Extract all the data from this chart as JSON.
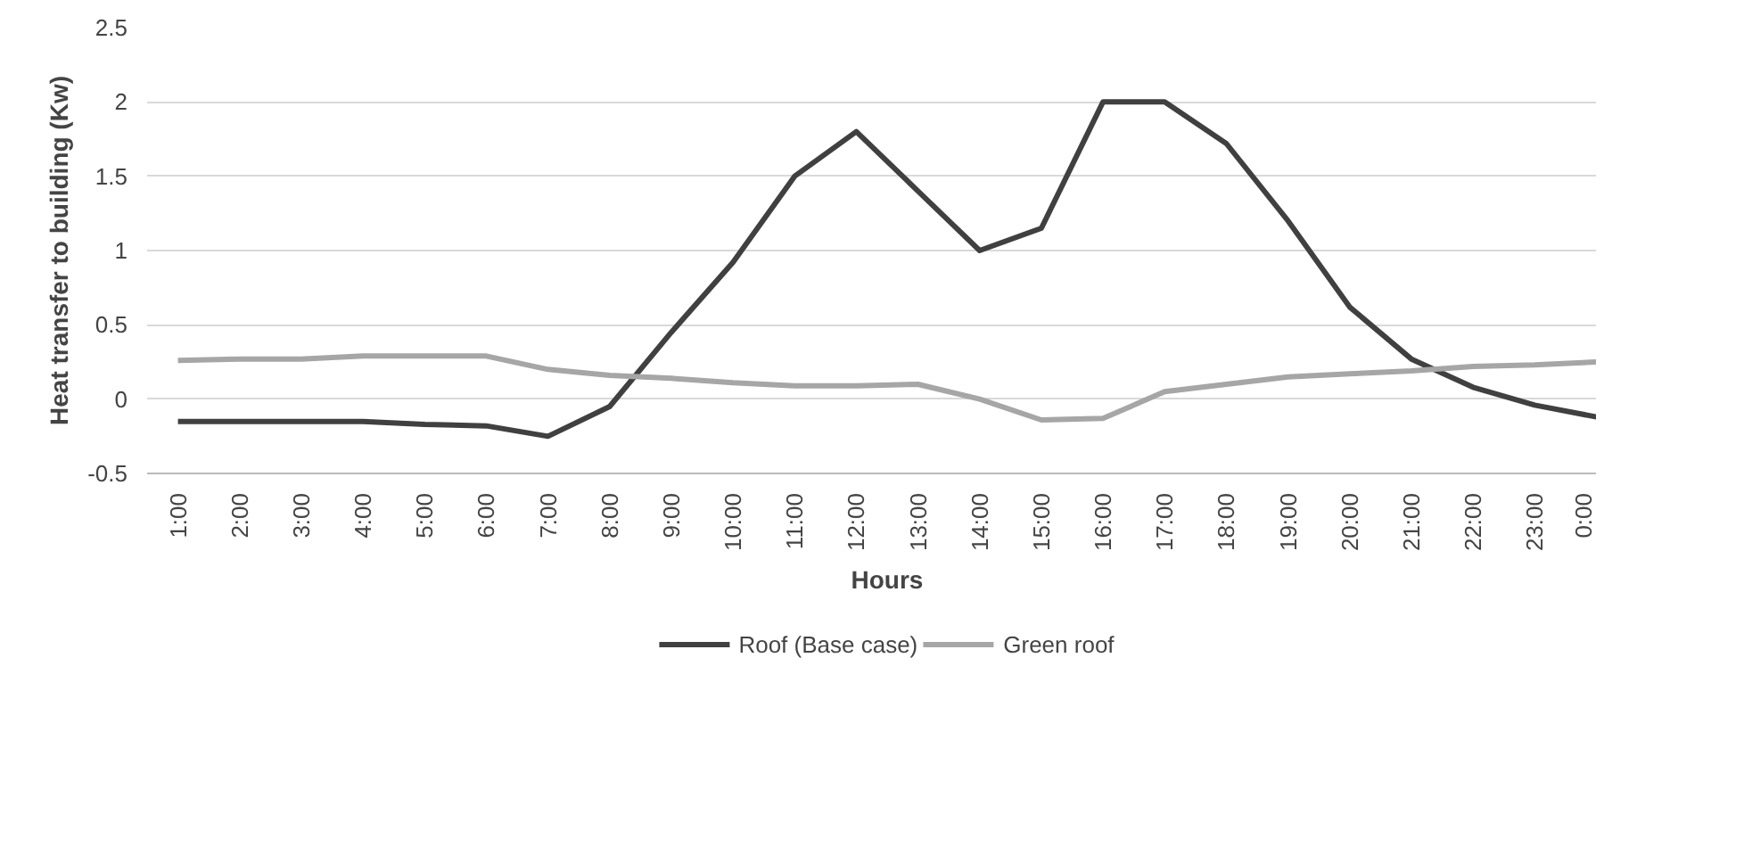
{
  "chart_data": {
    "type": "line",
    "xlabel": "Hours",
    "ylabel": "Heat transfer to building (Kw)",
    "categories": [
      "1:00",
      "2:00",
      "3:00",
      "4:00",
      "5:00",
      "6:00",
      "7:00",
      "8:00",
      "9:00",
      "10:00",
      "11:00",
      "12:00",
      "13:00",
      "14:00",
      "15:00",
      "16:00",
      "17:00",
      "18:00",
      "19:00",
      "20:00",
      "21:00",
      "22:00",
      "23:00",
      "0:00"
    ],
    "series": [
      {
        "name": "Roof (Base case)",
        "color": "#404040",
        "values": [
          -0.15,
          -0.15,
          -0.15,
          -0.15,
          -0.17,
          -0.18,
          -0.25,
          -0.05,
          0.45,
          0.92,
          1.5,
          1.8,
          1.4,
          1.0,
          1.15,
          2.0,
          2.0,
          1.72,
          1.2,
          0.62,
          0.27,
          0.08,
          -0.04,
          -0.12
        ]
      },
      {
        "name": "Green roof",
        "color": "#a6a6a6",
        "values": [
          0.26,
          0.27,
          0.27,
          0.29,
          0.29,
          0.29,
          0.2,
          0.16,
          0.14,
          0.11,
          0.09,
          0.09,
          0.1,
          0.0,
          -0.14,
          -0.13,
          0.05,
          0.1,
          0.15,
          0.17,
          0.19,
          0.22,
          0.23,
          0.25
        ]
      }
    ],
    "ylim": [
      -0.5,
      2.5
    ],
    "yticks": [
      -0.5,
      0,
      0.5,
      1,
      1.5,
      2,
      2.5
    ],
    "grid": "y",
    "legend": "bottom",
    "marker": "none",
    "line_style": "solid"
  }
}
